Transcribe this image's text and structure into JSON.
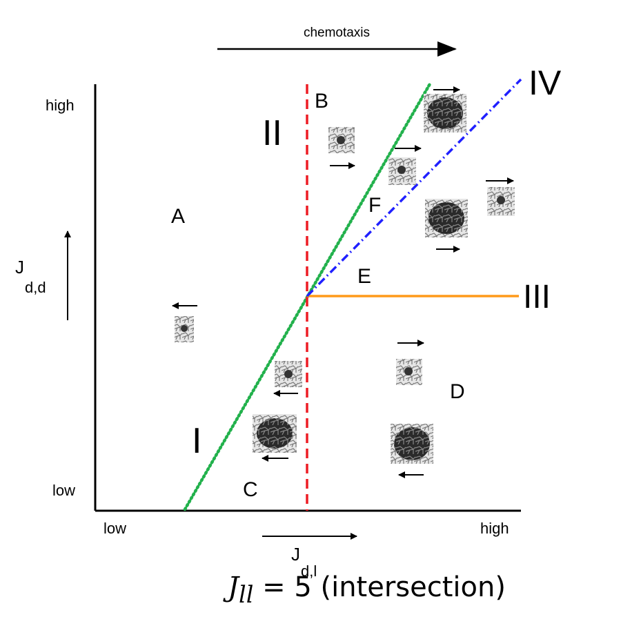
{
  "top_label": "chemotaxis",
  "y_axis": {
    "high": "high",
    "low": "low",
    "label_main": "J",
    "label_sub": "d,d"
  },
  "x_axis": {
    "low": "low",
    "high": "high",
    "label_main": "J",
    "label_sub": "d,l"
  },
  "regions": {
    "A": "A",
    "B": "B",
    "C": "C",
    "D": "D",
    "E": "E",
    "F": "F"
  },
  "lines": {
    "I": {
      "label": "I",
      "color": "#22b14c"
    },
    "II": {
      "label": "II",
      "color": "#ed1c24"
    },
    "III": {
      "label": "III",
      "color": "#ff9a1a"
    },
    "IV": {
      "label": "IV",
      "color": "#2020ff"
    }
  },
  "caption": {
    "var_main": "J",
    "var_sub": "ll",
    "rest": " = 5 (intersection)"
  }
}
